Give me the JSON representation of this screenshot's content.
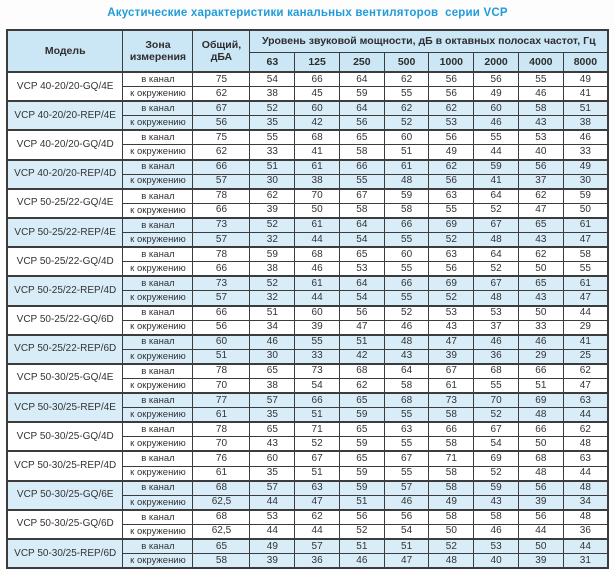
{
  "title": "Акустические характеристики канальных вентиляторов  серии VCP",
  "table": {
    "headers": {
      "model": "Модель",
      "zone": "Зона измерения",
      "total": "Общий, дБА",
      "octave": "Уровень звуковой мощности, дБ в октавных полосах частот, Гц",
      "frequencies": [
        "63",
        "125",
        "250",
        "500",
        "1000",
        "2000",
        "4000",
        "8000"
      ]
    },
    "zone_labels": {
      "duct": "в канал",
      "ambient": "к окружению"
    },
    "colors": {
      "title_text": "#229cd8",
      "header_bg": "#cbe6f5",
      "shaded_row_bg": "#d9edf9",
      "border": "#3c3c3c"
    },
    "rows": [
      {
        "model": "VCP 40-20/20-GQ/4E",
        "shaded": false,
        "duct": {
          "total": "75",
          "values": [
            "54",
            "66",
            "64",
            "62",
            "56",
            "56",
            "55",
            "49"
          ]
        },
        "ambient": {
          "total": "62",
          "values": [
            "38",
            "45",
            "59",
            "55",
            "56",
            "49",
            "46",
            "41"
          ]
        }
      },
      {
        "model": "VCP 40-20/20-REP/4E",
        "shaded": true,
        "duct": {
          "total": "67",
          "values": [
            "52",
            "60",
            "64",
            "62",
            "62",
            "60",
            "58",
            "51"
          ]
        },
        "ambient": {
          "total": "56",
          "values": [
            "35",
            "42",
            "56",
            "52",
            "53",
            "46",
            "43",
            "38"
          ]
        }
      },
      {
        "model": "VCP 40-20/20-GQ/4D",
        "shaded": false,
        "duct": {
          "total": "75",
          "values": [
            "55",
            "68",
            "65",
            "60",
            "56",
            "55",
            "53",
            "46"
          ]
        },
        "ambient": {
          "total": "62",
          "values": [
            "33",
            "41",
            "58",
            "51",
            "49",
            "44",
            "40",
            "33"
          ]
        }
      },
      {
        "model": "VCP 40-20/20-REP/4D",
        "shaded": true,
        "duct": {
          "total": "66",
          "values": [
            "51",
            "61",
            "66",
            "61",
            "62",
            "59",
            "56",
            "49"
          ]
        },
        "ambient": {
          "total": "57",
          "values": [
            "30",
            "38",
            "55",
            "48",
            "56",
            "41",
            "37",
            "30"
          ]
        }
      },
      {
        "model": "VCP 50-25/22-GQ/4E",
        "shaded": false,
        "duct": {
          "total": "78",
          "values": [
            "62",
            "70",
            "67",
            "59",
            "63",
            "64",
            "62",
            "59"
          ]
        },
        "ambient": {
          "total": "66",
          "values": [
            "39",
            "50",
            "58",
            "58",
            "55",
            "52",
            "47",
            "50"
          ]
        }
      },
      {
        "model": "VCP 50-25/22-REP/4E",
        "shaded": true,
        "duct": {
          "total": "73",
          "values": [
            "52",
            "61",
            "64",
            "66",
            "69",
            "67",
            "65",
            "61"
          ]
        },
        "ambient": {
          "total": "57",
          "values": [
            "32",
            "44",
            "54",
            "55",
            "52",
            "48",
            "43",
            "47"
          ]
        }
      },
      {
        "model": "VCP 50-25/22-GQ/4D",
        "shaded": false,
        "duct": {
          "total": "78",
          "values": [
            "59",
            "68",
            "65",
            "60",
            "63",
            "64",
            "62",
            "58"
          ]
        },
        "ambient": {
          "total": "66",
          "values": [
            "38",
            "46",
            "53",
            "55",
            "56",
            "52",
            "50",
            "55"
          ]
        }
      },
      {
        "model": "VCP 50-25/22-REP/4D",
        "shaded": true,
        "duct": {
          "total": "73",
          "values": [
            "52",
            "61",
            "64",
            "66",
            "69",
            "67",
            "65",
            "61"
          ]
        },
        "ambient": {
          "total": "57",
          "values": [
            "32",
            "44",
            "54",
            "55",
            "52",
            "48",
            "43",
            "47"
          ]
        }
      },
      {
        "model": "VCP 50-25/22-GQ/6D",
        "shaded": false,
        "duct": {
          "total": "66",
          "values": [
            "51",
            "60",
            "56",
            "52",
            "53",
            "53",
            "50",
            "44"
          ]
        },
        "ambient": {
          "total": "56",
          "values": [
            "34",
            "39",
            "47",
            "46",
            "43",
            "37",
            "33",
            "29"
          ]
        }
      },
      {
        "model": "VCP 50-25/22-REP/6D",
        "shaded": true,
        "duct": {
          "total": "60",
          "values": [
            "46",
            "55",
            "51",
            "48",
            "47",
            "46",
            "46",
            "41"
          ]
        },
        "ambient": {
          "total": "51",
          "values": [
            "30",
            "33",
            "42",
            "43",
            "39",
            "36",
            "29",
            "25"
          ]
        }
      },
      {
        "model": "VCP 50-30/25-GQ/4E",
        "shaded": false,
        "duct": {
          "total": "78",
          "values": [
            "65",
            "73",
            "68",
            "64",
            "67",
            "68",
            "66",
            "62"
          ]
        },
        "ambient": {
          "total": "70",
          "values": [
            "38",
            "54",
            "62",
            "58",
            "61",
            "55",
            "51",
            "47"
          ]
        }
      },
      {
        "model": "VCP 50-30/25-REP/4E",
        "shaded": true,
        "duct": {
          "total": "77",
          "values": [
            "57",
            "66",
            "65",
            "68",
            "73",
            "70",
            "69",
            "63"
          ]
        },
        "ambient": {
          "total": "61",
          "values": [
            "35",
            "51",
            "59",
            "55",
            "58",
            "52",
            "48",
            "44"
          ]
        }
      },
      {
        "model": "VCP 50-30/25-GQ/4D",
        "shaded": false,
        "duct": {
          "total": "78",
          "values": [
            "65",
            "71",
            "65",
            "63",
            "66",
            "67",
            "66",
            "62"
          ]
        },
        "ambient": {
          "total": "70",
          "values": [
            "43",
            "52",
            "59",
            "55",
            "58",
            "54",
            "50",
            "48"
          ]
        }
      },
      {
        "model": "VCP 50-30/25-REP/4D",
        "shaded": false,
        "duct": {
          "total": "76",
          "values": [
            "60",
            "67",
            "65",
            "67",
            "71",
            "69",
            "68",
            "63"
          ]
        },
        "ambient": {
          "total": "61",
          "values": [
            "35",
            "51",
            "59",
            "55",
            "58",
            "52",
            "48",
            "44"
          ]
        }
      },
      {
        "model": "VCP 50-30/25-GQ/6E",
        "shaded": true,
        "duct": {
          "total": "68",
          "values": [
            "57",
            "63",
            "59",
            "57",
            "58",
            "59",
            "56",
            "48"
          ]
        },
        "ambient": {
          "total": "62,5",
          "values": [
            "44",
            "47",
            "51",
            "46",
            "49",
            "43",
            "39",
            "34"
          ]
        }
      },
      {
        "model": "VCP 50-30/25-GQ/6D",
        "shaded": false,
        "duct": {
          "total": "68",
          "values": [
            "53",
            "62",
            "56",
            "56",
            "58",
            "58",
            "56",
            "48"
          ]
        },
        "ambient": {
          "total": "62,5",
          "values": [
            "44",
            "44",
            "52",
            "54",
            "50",
            "46",
            "44",
            "36"
          ]
        }
      },
      {
        "model": "VCP 50-30/25-REP/6D",
        "shaded": true,
        "duct": {
          "total": "65",
          "values": [
            "49",
            "57",
            "51",
            "51",
            "52",
            "53",
            "50",
            "44"
          ]
        },
        "ambient": {
          "total": "58",
          "values": [
            "39",
            "36",
            "46",
            "47",
            "48",
            "40",
            "39",
            "31"
          ]
        }
      }
    ]
  }
}
